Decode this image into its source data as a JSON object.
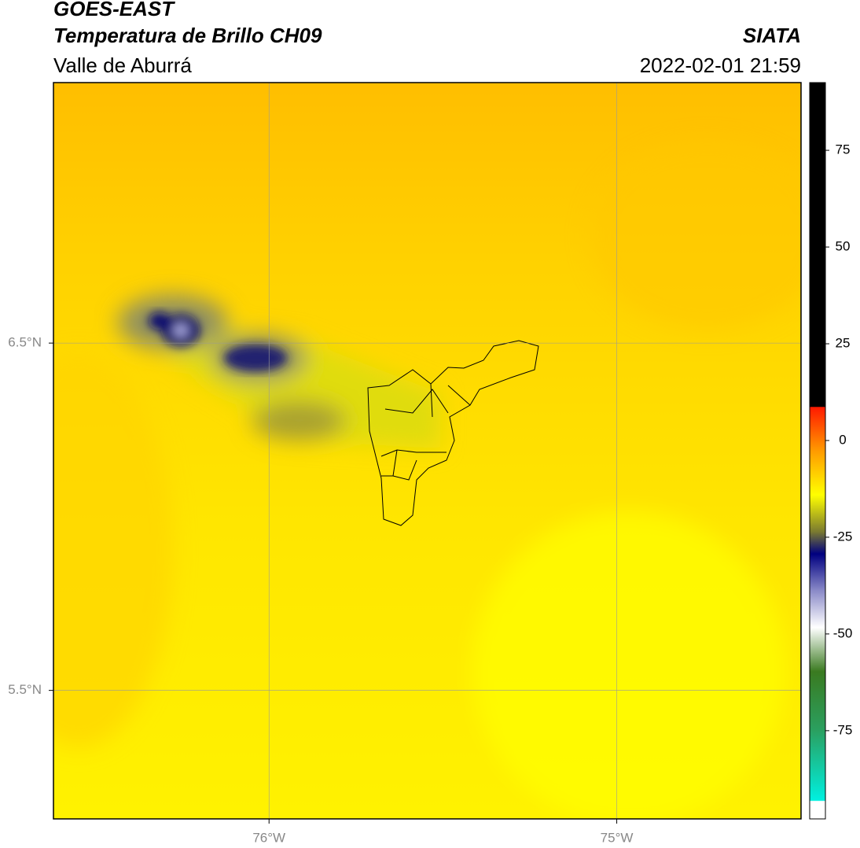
{
  "header": {
    "title": "GOES-EAST",
    "subtitle": "Temperatura de Brillo CH09",
    "region": "Valle de Aburrá",
    "source": "SIATA",
    "datetime": "2022-02-01 21:59"
  },
  "map": {
    "xlim": [
      -76.62,
      -74.47
    ],
    "ylim": [
      5.13,
      7.25
    ],
    "xticks": [
      {
        "value": -76,
        "label": "76°W"
      },
      {
        "value": -75,
        "label": "75°W"
      }
    ],
    "yticks": [
      {
        "value": 6.5,
        "label": "6.5°N"
      },
      {
        "value": 5.5,
        "label": "5.5°N"
      }
    ]
  },
  "colorbar": {
    "lim": [
      -97.8,
      92.5
    ],
    "ticks": [
      75,
      50,
      25,
      0,
      -25,
      -50,
      -75
    ]
  }
}
